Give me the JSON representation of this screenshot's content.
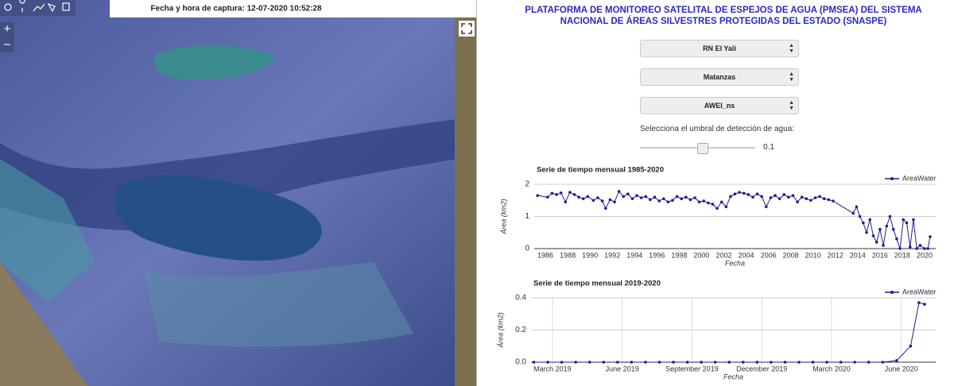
{
  "map": {
    "caption": "Fecha y hora de captura: 12-07-2020 10:52:28",
    "zoom_in": "+",
    "zoom_out": "−"
  },
  "panel": {
    "title": "PLATAFORMA DE MONITOREO SATELITAL DE ESPEJOS DE AGUA (PMSEA) DEL SISTEMA NACIONAL DE ÁREAS SILVESTRES PROTEGIDAS DEL ESTADO (SNASPE)",
    "selects": [
      "RN El Yali",
      "Matanzas",
      "AWEI_ns"
    ],
    "slider_label": "Selecciona el umbral de detección de agua:",
    "slider_value": 0.1
  },
  "charts": [
    {
      "type": "line",
      "title": "Serie de tiempo mensual 1985-2020",
      "x_label": "Fecha",
      "y_label": "Área (km2)",
      "xlim": [
        1985,
        2021
      ],
      "xticks": [
        1986,
        1988,
        1990,
        1992,
        1994,
        1996,
        1998,
        2000,
        2002,
        2004,
        2006,
        2008,
        2010,
        2012,
        2014,
        2016,
        2018,
        2020
      ],
      "ylim": [
        0,
        2
      ],
      "yticks": [
        0,
        1,
        2
      ],
      "grid": true,
      "legend": "top-right",
      "x": [
        1985.3,
        1986.2,
        1986.6,
        1987.0,
        1987.4,
        1987.8,
        1988.2,
        1988.6,
        1989.0,
        1989.4,
        1989.8,
        1990.3,
        1990.7,
        1991.1,
        1991.4,
        1991.8,
        1992.2,
        1992.6,
        1993.0,
        1993.4,
        1993.8,
        1994.2,
        1994.6,
        1995.0,
        1995.4,
        1995.8,
        1996.2,
        1996.6,
        1997.0,
        1997.4,
        1997.8,
        1998.2,
        1998.6,
        1999.0,
        1999.4,
        1999.8,
        2000.2,
        2000.6,
        2001.0,
        2001.4,
        2001.8,
        2002.2,
        2002.6,
        2003.0,
        2003.4,
        2003.8,
        2004.2,
        2004.6,
        2005.0,
        2005.4,
        2005.8,
        2006.2,
        2006.6,
        2007.0,
        2007.4,
        2007.8,
        2008.2,
        2008.6,
        2009.0,
        2009.4,
        2009.8,
        2010.2,
        2010.6,
        2011.0,
        2011.4,
        2011.8,
        2013.6,
        2013.9,
        2014.2,
        2014.5,
        2014.8,
        2015.1,
        2015.4,
        2015.7,
        2016.0,
        2016.3,
        2016.6,
        2016.9,
        2017.2,
        2017.5,
        2017.8,
        2018.1,
        2018.4,
        2018.7,
        2019.0,
        2019.3,
        2019.6,
        2020.0,
        2020.3,
        2020.5
      ],
      "series": [
        {
          "name": "AreaWater",
          "color": "#1f1f8f",
          "values": [
            1.65,
            1.6,
            1.72,
            1.68,
            1.73,
            1.45,
            1.75,
            1.68,
            1.6,
            1.55,
            1.62,
            1.5,
            1.58,
            1.48,
            1.25,
            1.52,
            1.45,
            1.78,
            1.62,
            1.7,
            1.55,
            1.65,
            1.58,
            1.62,
            1.52,
            1.6,
            1.48,
            1.55,
            1.45,
            1.5,
            1.62,
            1.55,
            1.6,
            1.52,
            1.58,
            1.45,
            1.48,
            1.42,
            1.38,
            1.25,
            1.45,
            1.3,
            1.62,
            1.7,
            1.75,
            1.72,
            1.68,
            1.6,
            1.7,
            1.62,
            1.3,
            1.58,
            1.65,
            1.55,
            1.68,
            1.6,
            1.65,
            1.45,
            1.6,
            1.55,
            1.5,
            1.58,
            1.62,
            1.55,
            1.52,
            1.48,
            1.1,
            1.3,
            1.0,
            0.8,
            0.5,
            0.9,
            0.4,
            0.2,
            0.6,
            0.1,
            0.7,
            1.0,
            0.6,
            0.3,
            0.0,
            0.9,
            0.8,
            0.05,
            0.9,
            0.0,
            0.1,
            0.0,
            0.0,
            0.37
          ]
        }
      ]
    },
    {
      "type": "line",
      "title": "Serie de tiempo mensual 2019-2020",
      "x_label": "Fecha",
      "y_label": "Área (km2)",
      "xlim": [
        2019.09,
        2020.54
      ],
      "xticks": [
        {
          "value": 2019.1667,
          "label": "March 2019"
        },
        {
          "value": 2019.4167,
          "label": "June 2019"
        },
        {
          "value": 2019.6667,
          "label": "September 2019"
        },
        {
          "value": 2019.9167,
          "label": "December 2019"
        },
        {
          "value": 2020.1667,
          "label": "March 2020"
        },
        {
          "value": 2020.4167,
          "label": "June 2020"
        }
      ],
      "ylim": [
        0,
        0.4
      ],
      "yticks": [
        {
          "value": 0,
          "label": "0.0"
        },
        0.2,
        0.4
      ],
      "grid": true,
      "legend": "top-right",
      "x": [
        2019.1,
        2019.15,
        2019.2,
        2019.25,
        2019.3,
        2019.35,
        2019.4,
        2019.45,
        2019.5,
        2019.55,
        2019.6,
        2019.65,
        2019.7,
        2019.75,
        2019.8,
        2019.85,
        2019.9,
        2019.95,
        2020.0,
        2020.05,
        2020.1,
        2020.15,
        2020.2,
        2020.25,
        2020.3,
        2020.35,
        2020.4,
        2020.45,
        2020.48,
        2020.5
      ],
      "series": [
        {
          "name": "AreaWater",
          "color": "#1f1f8f",
          "values": [
            0,
            0,
            0,
            0,
            0,
            0,
            0,
            0,
            0,
            0,
            0,
            0,
            0,
            0,
            0,
            0,
            0,
            0,
            0,
            0,
            0,
            0,
            0,
            0,
            0,
            0,
            0.01,
            0.1,
            0.37,
            0.36
          ]
        }
      ]
    }
  ]
}
